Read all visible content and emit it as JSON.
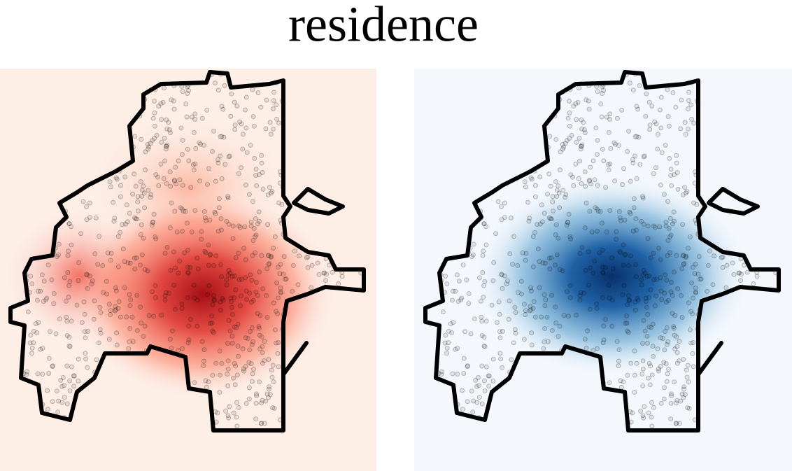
{
  "title": "residence"
}
